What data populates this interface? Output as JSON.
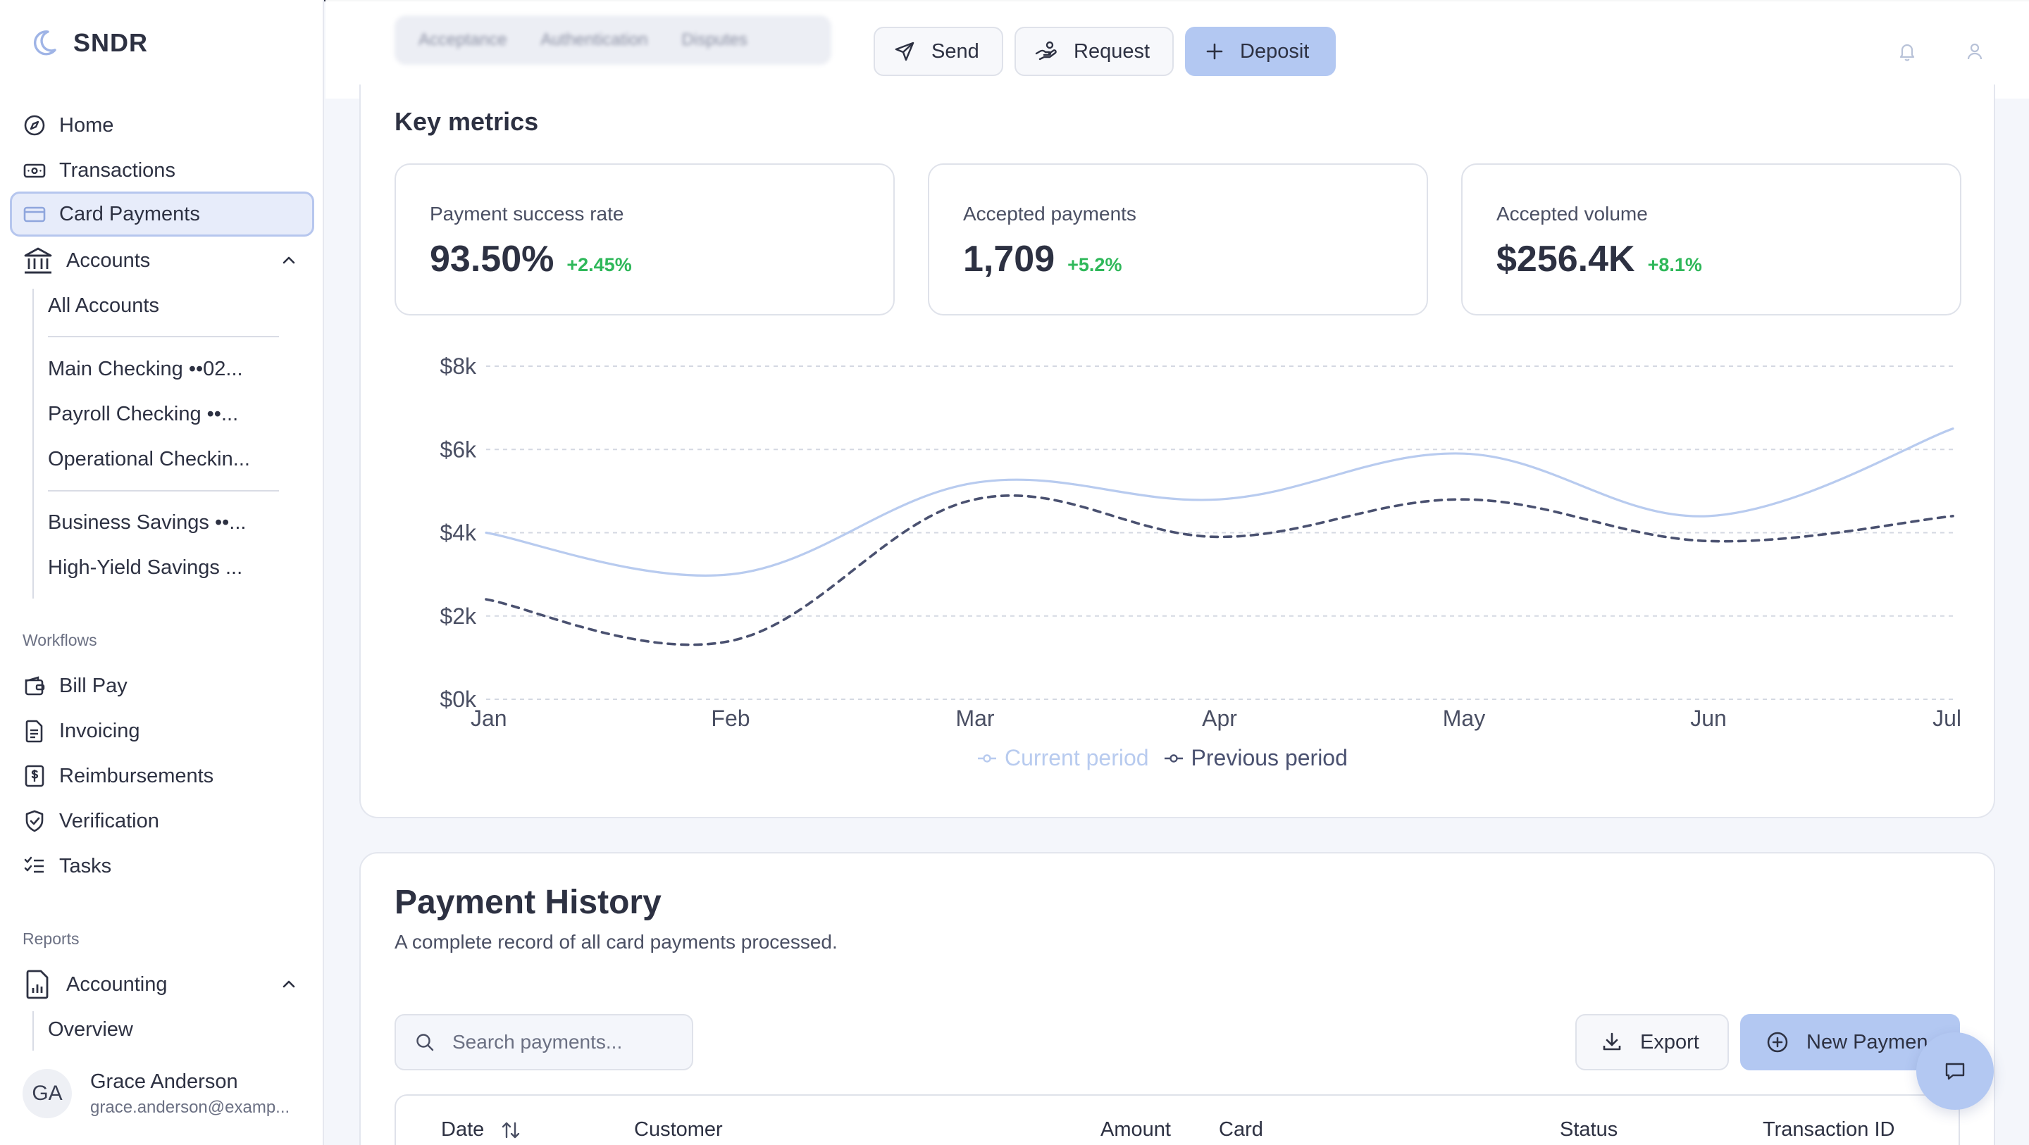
{
  "brand": {
    "name": "SNDR"
  },
  "sidebar": {
    "items": [
      {
        "label": "Home",
        "icon": "compass-icon"
      },
      {
        "label": "Transactions",
        "icon": "banknote-icon"
      },
      {
        "label": "Card Payments",
        "icon": "credit-card-icon",
        "active": true
      },
      {
        "label": "Accounts",
        "icon": "bank-icon",
        "expanded": true
      }
    ],
    "accounts": {
      "all": "All Accounts",
      "checking": [
        "Main Checking ••02...",
        "Payroll Checking ••...",
        "Operational Checkin..."
      ],
      "savings": [
        "Business Savings ••...",
        "High-Yield Savings ..."
      ]
    },
    "workflows": {
      "label": "Workflows",
      "items": [
        {
          "label": "Bill Pay",
          "icon": "wallet-icon"
        },
        {
          "label": "Invoicing",
          "icon": "document-icon"
        },
        {
          "label": "Reimbursements",
          "icon": "receipt-dollar-icon"
        },
        {
          "label": "Verification",
          "icon": "shield-check-icon"
        },
        {
          "label": "Tasks",
          "icon": "checklist-icon"
        }
      ]
    },
    "reports": {
      "label": "Reports",
      "accounting": {
        "label": "Accounting",
        "icon": "chart-file-icon",
        "expanded": true
      },
      "sub": [
        "Overview"
      ]
    },
    "user": {
      "initials": "GA",
      "name": "Grace Anderson",
      "email": "grace.anderson@examp..."
    }
  },
  "topbar": {
    "tabs_blurred": [
      "Acceptance",
      "Authentication",
      "Disputes"
    ],
    "buttons": {
      "send": "Send",
      "request": "Request",
      "deposit": "Deposit"
    }
  },
  "metrics": {
    "title": "Key metrics",
    "cards": [
      {
        "label": "Payment success rate",
        "value": "93.50%",
        "change": "+2.45%"
      },
      {
        "label": "Accepted payments",
        "value": "1,709",
        "change": "+5.2%"
      },
      {
        "label": "Accepted volume",
        "value": "$256.4K",
        "change": "+8.1%"
      }
    ]
  },
  "chart_data": {
    "type": "line",
    "categories": [
      "Jan",
      "Feb",
      "Mar",
      "Apr",
      "May",
      "Jun",
      "Jul"
    ],
    "series": [
      {
        "name": "Current period",
        "values": [
          4000,
          3000,
          5200,
          4800,
          5900,
          4400,
          6500
        ],
        "color": "#b8cbef",
        "style": "solid"
      },
      {
        "name": "Previous period",
        "values": [
          2400,
          1400,
          4800,
          3900,
          4800,
          3800,
          4400
        ],
        "color": "#4a5170",
        "style": "dashed"
      }
    ],
    "yticks": [
      "$0k",
      "$2k",
      "$4k",
      "$6k",
      "$8k"
    ],
    "ylim": [
      0,
      8000
    ],
    "grid": true,
    "legend": "bottom-center"
  },
  "payment_history": {
    "title": "Payment History",
    "subtitle": "A complete record of all card payments processed.",
    "search_placeholder": "Search payments...",
    "export_label": "Export",
    "new_payment_label": "New Paymen",
    "columns": [
      "Date",
      "Customer",
      "Amount",
      "Card",
      "Status",
      "Transaction ID"
    ]
  }
}
